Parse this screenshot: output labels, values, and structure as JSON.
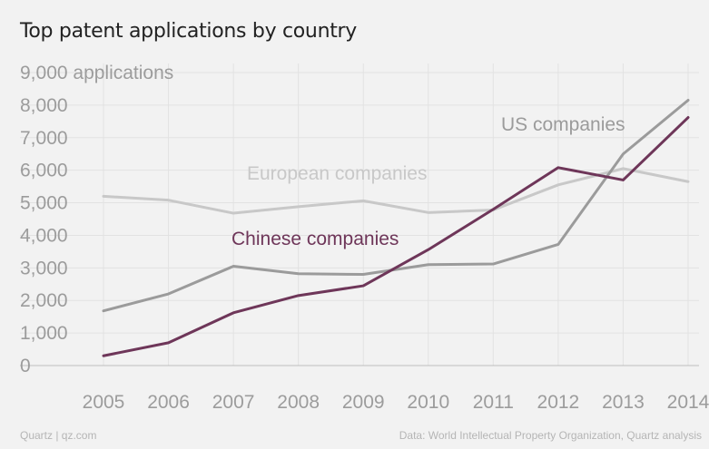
{
  "chart_data": {
    "type": "line",
    "title": "Top patent applications by country",
    "ylabel_unit": "applications",
    "x": [
      2005,
      2006,
      2007,
      2008,
      2009,
      2010,
      2011,
      2012,
      2013,
      2014
    ],
    "ylim": [
      0,
      9000
    ],
    "yticks": [
      "0",
      "1,000",
      "2,000",
      "3,000",
      "4,000",
      "5,000",
      "6,000",
      "7,000",
      "8,000",
      "9,000"
    ],
    "grid": true,
    "series": [
      {
        "name": "European companies",
        "color": "#c8c8c8",
        "values": [
          5200,
          5080,
          4680,
          4880,
          5060,
          4700,
          4780,
          5550,
          6050,
          5650
        ]
      },
      {
        "name": "US companies",
        "color": "#9b9b9b",
        "values": [
          1680,
          2200,
          3050,
          2820,
          2800,
          3100,
          3120,
          3720,
          6500,
          8150
        ]
      },
      {
        "name": "Chinese companies",
        "color": "#6e3659",
        "values": [
          300,
          700,
          1620,
          2150,
          2450,
          3560,
          4800,
          6080,
          5700,
          7620
        ]
      }
    ]
  },
  "footer": {
    "left": "Quartz | qz.com",
    "right": "Data: World Intellectual Property Organization, Quartz analysis"
  }
}
